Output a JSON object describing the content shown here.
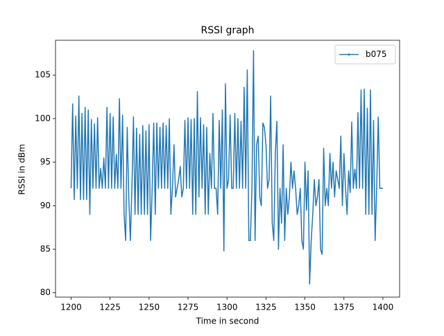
{
  "chart_data": {
    "type": "line",
    "title": "RSSI graph",
    "xlabel": "Time in second",
    "ylabel": "RSSI in dBm",
    "x": [
      1200,
      1201,
      1202,
      1203,
      1204,
      1205,
      1206,
      1207,
      1208,
      1209,
      1210,
      1211,
      1212,
      1213,
      1214,
      1215,
      1216,
      1217,
      1218,
      1219,
      1220,
      1221,
      1222,
      1223,
      1224,
      1225,
      1226,
      1227,
      1228,
      1229,
      1230,
      1231,
      1232,
      1233,
      1234,
      1235,
      1236,
      1237,
      1238,
      1239,
      1240,
      1241,
      1242,
      1243,
      1244,
      1245,
      1246,
      1247,
      1248,
      1249,
      1250,
      1251,
      1252,
      1253,
      1254,
      1255,
      1256,
      1257,
      1258,
      1259,
      1260,
      1261,
      1262,
      1263,
      1264,
      1265,
      1266,
      1267,
      1268,
      1269,
      1270,
      1271,
      1272,
      1273,
      1274,
      1275,
      1276,
      1277,
      1278,
      1279,
      1280,
      1281,
      1282,
      1283,
      1284,
      1285,
      1286,
      1287,
      1288,
      1289,
      1290,
      1291,
      1292,
      1293,
      1294,
      1295,
      1296,
      1297,
      1298,
      1299,
      1300,
      1301,
      1302,
      1303,
      1304,
      1305,
      1306,
      1307,
      1308,
      1309,
      1310,
      1311,
      1312,
      1313,
      1314,
      1315,
      1316,
      1317,
      1318,
      1319,
      1320,
      1321,
      1322,
      1323,
      1324,
      1325,
      1326,
      1327,
      1328,
      1329,
      1330,
      1331,
      1332,
      1333,
      1334,
      1335,
      1336,
      1337,
      1338,
      1339,
      1340,
      1341,
      1342,
      1343,
      1344,
      1345,
      1346,
      1347,
      1348,
      1349,
      1350,
      1351,
      1352,
      1353,
      1354,
      1355,
      1356,
      1357,
      1358,
      1359,
      1360,
      1361,
      1362,
      1363,
      1364,
      1365,
      1366,
      1367,
      1368,
      1369,
      1370,
      1371,
      1372,
      1373,
      1374,
      1375,
      1376,
      1377,
      1378,
      1379,
      1380,
      1381,
      1382,
      1383,
      1384,
      1385,
      1386,
      1387,
      1388,
      1389,
      1390,
      1391,
      1392,
      1393,
      1394,
      1395,
      1396,
      1397,
      1398,
      1399,
      1400
    ],
    "series": [
      {
        "name": "b075",
        "color": "#1f77b4",
        "values": [
          92,
          101.7,
          90.7,
          100.3,
          92,
          102.6,
          90.7,
          100.6,
          90.7,
          101.3,
          90.7,
          101,
          89,
          99.9,
          92,
          99.4,
          92,
          100.1,
          92,
          94.3,
          92,
          95.5,
          92,
          101.3,
          92,
          100.6,
          92,
          100.2,
          92,
          95.9,
          92,
          102.3,
          92,
          100.4,
          89,
          86,
          99,
          91,
          86,
          92,
          100.2,
          89,
          98.9,
          89,
          98.2,
          89,
          99.2,
          89,
          98.6,
          89,
          99.3,
          86,
          92,
          99.5,
          89,
          99.5,
          92,
          99,
          92,
          99.5,
          92,
          99.2,
          92,
          100,
          89,
          92,
          97,
          91,
          92,
          93,
          94.5,
          91,
          92,
          99.8,
          92,
          100.1,
          92,
          99.9,
          89,
          100,
          89,
          103.1,
          91,
          100.1,
          92,
          99.3,
          89,
          99,
          89,
          96,
          92,
          100.6,
          92,
          92,
          89,
          99.8,
          92,
          101,
          84.8,
          104,
          92,
          93,
          100.4,
          92,
          92,
          100.6,
          92,
          100,
          92,
          99.7,
          92,
          103.6,
          92,
          105.6,
          86,
          86,
          92,
          107.8,
          86,
          97,
          98,
          91,
          90,
          99.5,
          99,
          97,
          92,
          93,
          102.6,
          88,
          86,
          96,
          99.7,
          85,
          92,
          88,
          97,
          86,
          92,
          89,
          91,
          95,
          92,
          94,
          92,
          89,
          90,
          92,
          86,
          85,
          95,
          89.5,
          94,
          81,
          86,
          89,
          93,
          90,
          91,
          93,
          85,
          84.4,
          96.6,
          90,
          92,
          90,
          96,
          92,
          95,
          91,
          94,
          93,
          92,
          98,
          90,
          96,
          92,
          89,
          94,
          91.5,
          99.6,
          92,
          94.2,
          92,
          100.7,
          92,
          103.3,
          92,
          103.4,
          89,
          101.2,
          89,
          103.3,
          89,
          99.8,
          86,
          92,
          100.2,
          92,
          92,
          92
        ]
      }
    ],
    "xlim": [
      1190,
      1410.7
    ],
    "ylim": [
      79.5,
      109
    ],
    "xticks": [
      1200,
      1225,
      1250,
      1275,
      1300,
      1325,
      1350,
      1375,
      1400
    ],
    "yticks": [
      80,
      85,
      90,
      95,
      100,
      105
    ],
    "legend": "upper right"
  }
}
